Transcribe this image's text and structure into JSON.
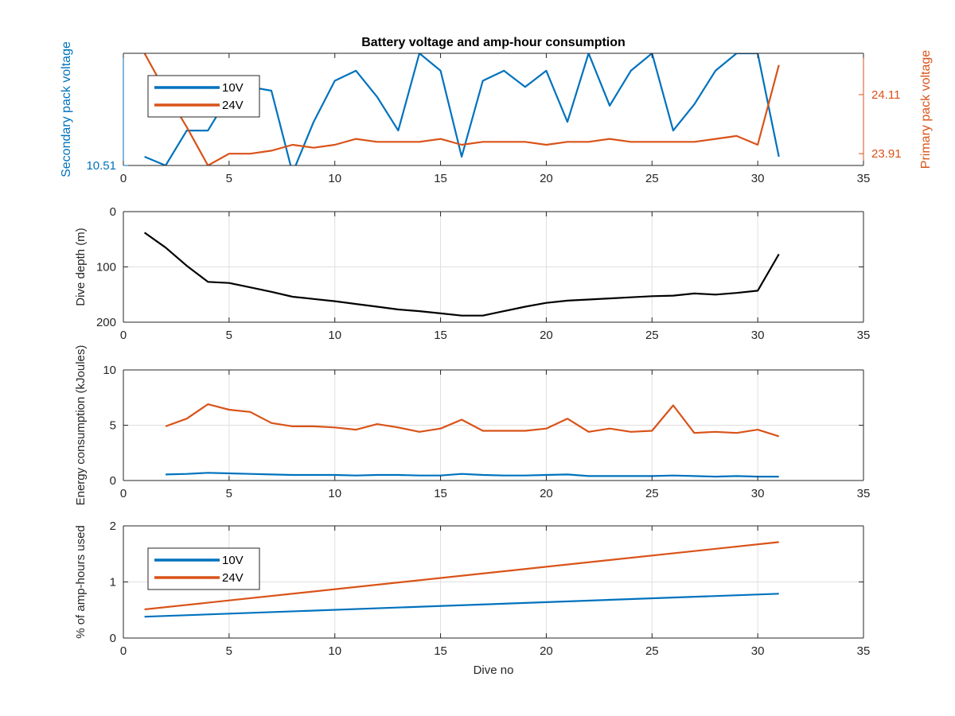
{
  "chart_data": [
    {
      "type": "line",
      "title": "Battery voltage and amp-hour consumption",
      "xlabel": "",
      "ylabel_left": "Secondary pack voltage",
      "ylabel_right": "Primary pack voltage",
      "xlim": [
        0,
        35
      ],
      "xticks": [
        0,
        5,
        10,
        15,
        20,
        25,
        30,
        35
      ],
      "ylim_left": [
        10.51,
        10.6
      ],
      "yticks_left": [
        10.51
      ],
      "ylim_right": [
        23.87,
        24.25
      ],
      "yticks_right": [
        23.91,
        24.11
      ],
      "grid": false,
      "legend": {
        "position": "top-left",
        "entries": [
          "10V",
          "24V"
        ]
      },
      "series": [
        {
          "name": "10V",
          "axis": "left",
          "color": "#0072BD",
          "x": [
            1,
            2,
            3,
            4,
            5,
            6,
            7,
            8,
            9,
            10,
            11,
            12,
            13,
            14,
            15,
            16,
            17,
            18,
            19,
            20,
            21,
            22,
            23,
            24,
            25,
            26,
            27,
            28,
            29,
            30,
            31
          ],
          "y": [
            10.517,
            10.51,
            10.538,
            10.538,
            10.566,
            10.573,
            10.57,
            10.504,
            10.545,
            10.578,
            10.586,
            10.565,
            10.538,
            10.6,
            10.586,
            10.517,
            10.578,
            10.586,
            10.573,
            10.586,
            10.545,
            10.6,
            10.558,
            10.586,
            10.6,
            10.538,
            10.559,
            10.586,
            10.6,
            10.6,
            10.517
          ]
        },
        {
          "name": "24V",
          "axis": "right",
          "color": "#D95319",
          "x": [
            1,
            2,
            3,
            4,
            5,
            6,
            7,
            8,
            9,
            10,
            11,
            12,
            13,
            14,
            15,
            16,
            17,
            18,
            19,
            20,
            21,
            22,
            23,
            24,
            25,
            26,
            27,
            28,
            29,
            30,
            31
          ],
          "y": [
            24.25,
            24.12,
            24.0,
            23.87,
            23.91,
            23.91,
            23.92,
            23.94,
            23.93,
            23.94,
            23.96,
            23.95,
            23.95,
            23.95,
            23.96,
            23.94,
            23.95,
            23.95,
            23.95,
            23.94,
            23.95,
            23.95,
            23.96,
            23.95,
            23.95,
            23.95,
            23.95,
            23.96,
            23.97,
            23.94,
            24.21
          ]
        }
      ]
    },
    {
      "type": "line",
      "title": "",
      "xlabel": "",
      "ylabel": "Dive depth (m)",
      "xlim": [
        0,
        35
      ],
      "xticks": [
        0,
        5,
        10,
        15,
        20,
        25,
        30,
        35
      ],
      "ylim": [
        0,
        200
      ],
      "y_reversed": true,
      "yticks": [
        0,
        100,
        200
      ],
      "grid": true,
      "series": [
        {
          "color": "#000000",
          "x": [
            1,
            2,
            3,
            4,
            5,
            6,
            7,
            8,
            9,
            10,
            11,
            12,
            13,
            14,
            15,
            16,
            17,
            18,
            19,
            20,
            21,
            22,
            23,
            24,
            25,
            26,
            27,
            28,
            29,
            30,
            31
          ],
          "y": [
            38,
            65,
            98,
            127,
            129,
            137,
            145,
            154,
            158,
            162,
            167,
            172,
            177,
            180,
            184,
            188,
            188,
            180,
            172,
            165,
            161,
            159,
            157,
            155,
            153,
            152,
            148,
            150,
            147,
            143,
            77
          ]
        }
      ]
    },
    {
      "type": "line",
      "title": "",
      "xlabel": "",
      "ylabel": "Energy consumption (kJoules)",
      "xlim": [
        0,
        35
      ],
      "xticks": [
        0,
        5,
        10,
        15,
        20,
        25,
        30,
        35
      ],
      "ylim": [
        0,
        10
      ],
      "yticks": [
        0,
        5,
        10
      ],
      "grid": true,
      "series": [
        {
          "name": "10V",
          "color": "#0072BD",
          "x": [
            2,
            3,
            4,
            5,
            6,
            7,
            8,
            9,
            10,
            11,
            12,
            13,
            14,
            15,
            16,
            17,
            18,
            19,
            20,
            21,
            22,
            23,
            24,
            25,
            26,
            27,
            28,
            29,
            30,
            31
          ],
          "y": [
            0.55,
            0.6,
            0.7,
            0.65,
            0.6,
            0.55,
            0.5,
            0.5,
            0.5,
            0.45,
            0.5,
            0.5,
            0.45,
            0.45,
            0.6,
            0.5,
            0.45,
            0.45,
            0.5,
            0.55,
            0.4,
            0.4,
            0.4,
            0.4,
            0.45,
            0.4,
            0.35,
            0.4,
            0.35,
            0.35
          ]
        },
        {
          "name": "24V",
          "color": "#D95319",
          "x": [
            2,
            3,
            4,
            5,
            6,
            7,
            8,
            9,
            10,
            11,
            12,
            13,
            14,
            15,
            16,
            17,
            18,
            19,
            20,
            21,
            22,
            23,
            24,
            25,
            26,
            27,
            28,
            29,
            30,
            31
          ],
          "y": [
            4.9,
            5.6,
            6.9,
            6.4,
            6.2,
            5.2,
            4.9,
            4.9,
            4.8,
            4.6,
            5.1,
            4.8,
            4.4,
            4.7,
            5.5,
            4.5,
            4.5,
            4.5,
            4.7,
            5.6,
            4.4,
            4.7,
            4.4,
            4.5,
            6.8,
            4.3,
            4.4,
            4.3,
            4.6,
            4.0
          ]
        }
      ]
    },
    {
      "type": "line",
      "title": "",
      "xlabel": "Dive no",
      "ylabel": "% of amp-hours used",
      "xlim": [
        0,
        35
      ],
      "xticks": [
        0,
        5,
        10,
        15,
        20,
        25,
        30,
        35
      ],
      "ylim": [
        0,
        2
      ],
      "yticks": [
        0,
        1,
        2
      ],
      "grid": true,
      "legend": {
        "position": "top-left",
        "entries": [
          "10V",
          "24V"
        ]
      },
      "series": [
        {
          "name": "10V",
          "color": "#0072BD",
          "x": [
            1,
            31
          ],
          "y": [
            0.38,
            0.79
          ]
        },
        {
          "name": "24V",
          "color": "#D95319",
          "x": [
            1,
            31
          ],
          "y": [
            0.51,
            1.71
          ]
        }
      ]
    }
  ]
}
